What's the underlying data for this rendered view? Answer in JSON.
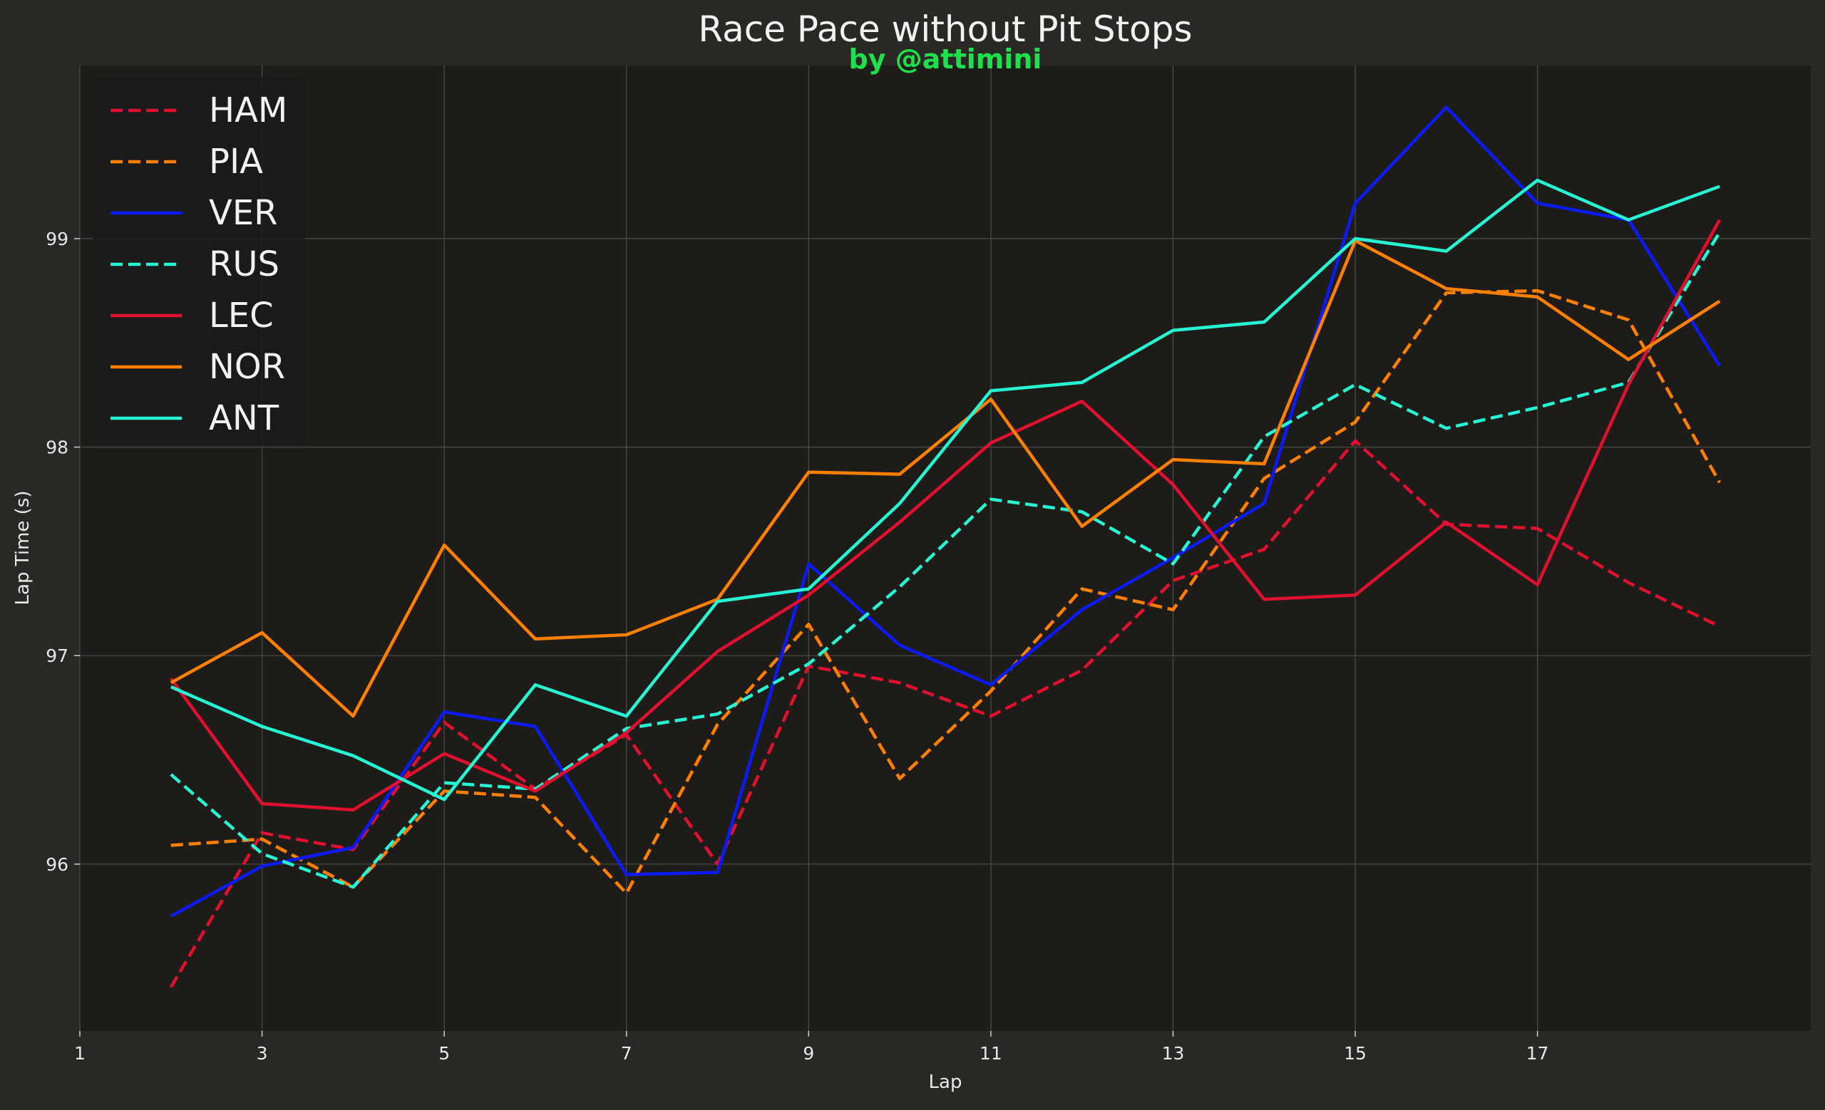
{
  "chart_data": {
    "type": "line",
    "title": "Race Pace without Pit Stops",
    "subtitle": "by @attimini",
    "xlabel": "Lap",
    "ylabel": "Lap Time (s)",
    "xlim": [
      1,
      20
    ],
    "ylim": [
      95.2,
      99.83
    ],
    "xticks": [
      1,
      3,
      5,
      7,
      9,
      11,
      13,
      15,
      17
    ],
    "yticks": [
      96,
      97,
      98,
      99
    ],
    "grid": true,
    "legend_position": "top-left",
    "x": [
      2,
      3,
      4,
      5,
      6,
      7,
      8,
      9,
      10,
      11,
      12,
      13,
      14,
      15,
      16,
      17,
      18,
      19
    ],
    "series": [
      {
        "name": "HAM",
        "color": "#e0102f",
        "dash": "dashed",
        "values": [
          95.41,
          96.15,
          96.07,
          96.68,
          96.36,
          96.62,
          96.0,
          96.95,
          96.87,
          96.71,
          96.93,
          97.36,
          97.51,
          98.03,
          97.63,
          97.61,
          97.35,
          97.14
        ]
      },
      {
        "name": "PIA",
        "color": "#ff8000",
        "dash": "dashed",
        "values": [
          96.09,
          96.12,
          95.89,
          96.35,
          96.32,
          95.86,
          96.67,
          97.15,
          96.41,
          96.83,
          97.32,
          97.22,
          97.85,
          98.12,
          98.74,
          98.75,
          98.61,
          97.83
        ]
      },
      {
        "name": "VER",
        "color": "#0b1bf2",
        "dash": "solid",
        "values": [
          95.75,
          95.99,
          96.08,
          96.73,
          96.66,
          95.95,
          95.96,
          97.44,
          97.05,
          96.86,
          97.22,
          97.47,
          97.73,
          99.17,
          99.63,
          99.17,
          99.09,
          98.39
        ]
      },
      {
        "name": "RUS",
        "color": "#27f4d2",
        "dash": "dashed",
        "values": [
          96.43,
          96.05,
          95.89,
          96.39,
          96.36,
          96.65,
          96.72,
          96.96,
          97.33,
          97.75,
          97.69,
          97.44,
          98.05,
          98.3,
          98.09,
          98.19,
          98.31,
          99.03
        ]
      },
      {
        "name": "LEC",
        "color": "#e0102f",
        "dash": "solid",
        "values": [
          96.89,
          96.29,
          96.26,
          96.53,
          96.35,
          96.63,
          97.02,
          97.29,
          97.64,
          98.02,
          98.22,
          97.82,
          97.27,
          97.29,
          97.64,
          97.34,
          98.3,
          99.09
        ]
      },
      {
        "name": "NOR",
        "color": "#ff8000",
        "dash": "solid",
        "values": [
          96.87,
          97.11,
          96.71,
          97.53,
          97.08,
          97.1,
          97.27,
          97.88,
          97.87,
          98.23,
          97.62,
          97.94,
          97.92,
          98.99,
          98.76,
          98.72,
          98.42,
          98.7
        ]
      },
      {
        "name": "ANT",
        "color": "#27f4d2",
        "dash": "solid",
        "values": [
          96.85,
          96.66,
          96.52,
          96.31,
          96.86,
          96.71,
          97.26,
          97.32,
          97.73,
          98.27,
          98.31,
          98.56,
          98.6,
          99.0,
          98.94,
          99.28,
          99.09,
          99.25
        ]
      }
    ]
  }
}
